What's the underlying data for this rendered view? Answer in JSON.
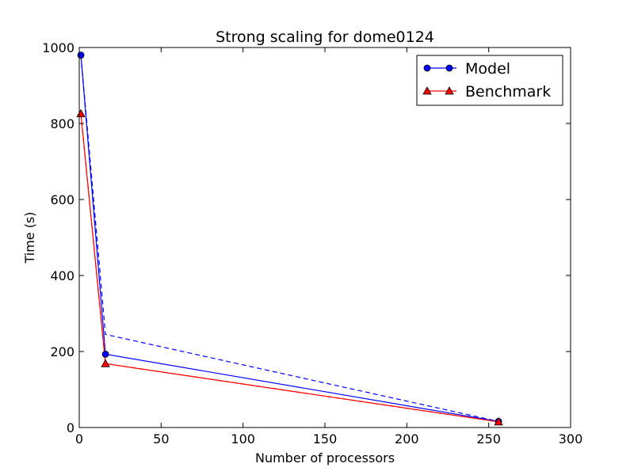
{
  "chart_data": {
    "type": "line",
    "title": "Strong scaling for dome0124",
    "xlabel": "Number of processors",
    "ylabel": "Time (s)",
    "xlim": [
      0,
      300
    ],
    "ylim": [
      0,
      1000
    ],
    "xticks": [
      0,
      50,
      100,
      150,
      200,
      250,
      300
    ],
    "yticks": [
      0,
      200,
      400,
      600,
      800,
      1000
    ],
    "grid": false,
    "legend_position": "top-right",
    "series": [
      {
        "name": "Model",
        "color": "#0000ff",
        "marker": "circle",
        "line_style": "solid",
        "x": [
          1,
          16,
          256
        ],
        "y": [
          980,
          193,
          16
        ]
      },
      {
        "name": "Benchmark",
        "color": "#ff0000",
        "marker": "triangle",
        "line_style": "solid",
        "x": [
          1,
          16,
          256
        ],
        "y": [
          826,
          168,
          15
        ]
      }
    ],
    "unlabeled_lines": [
      {
        "color": "#0000ff",
        "line_style": "dashed",
        "x": [
          1,
          16,
          256
        ],
        "y": [
          980,
          245,
          16
        ]
      },
      {
        "color": "#ff0000",
        "line_style": "dashed",
        "x": [
          1,
          16,
          256
        ],
        "y": [
          826,
          168,
          15
        ]
      }
    ]
  }
}
